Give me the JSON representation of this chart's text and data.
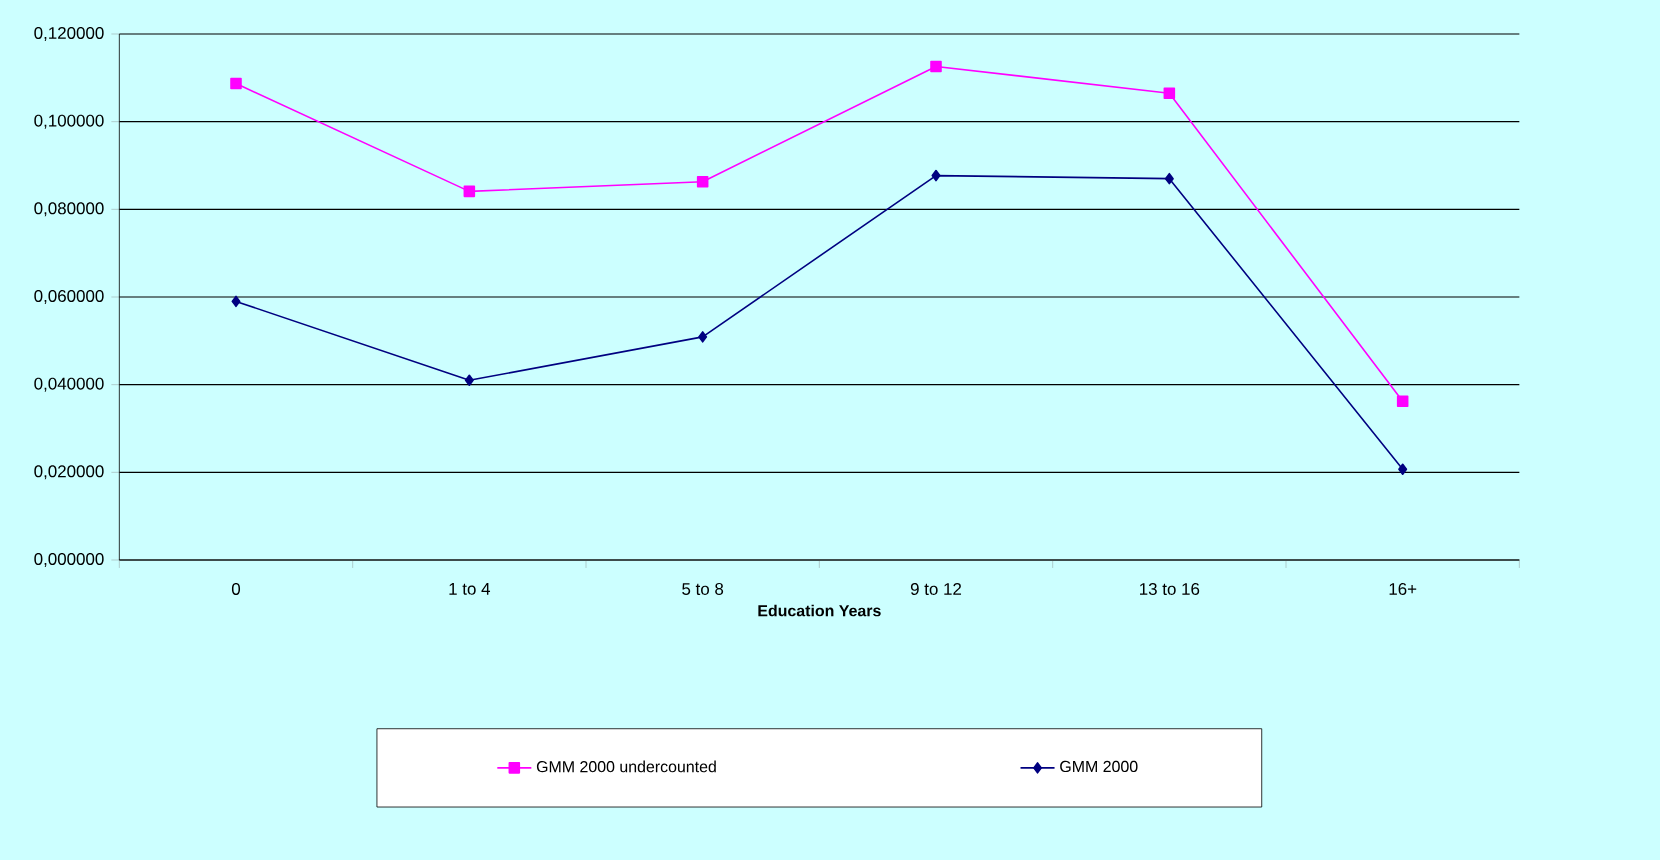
{
  "chart_data": {
    "type": "line",
    "xlabel": "Education Years",
    "categories": [
      "0",
      "1 to 4",
      "5 to 8",
      "9 to 12",
      "13 to 16",
      "16+"
    ],
    "series": [
      {
        "name": "GMM 2000 undercounted",
        "color": "#ff00ff",
        "marker": "square",
        "values": [
          0.1087,
          0.0841,
          0.0863,
          0.1126,
          0.1065,
          0.0362
        ]
      },
      {
        "name": "GMM 2000",
        "color": "#000080",
        "marker": "diamond",
        "values": [
          0.059,
          0.041,
          0.0509,
          0.0877,
          0.087,
          0.0207
        ]
      }
    ],
    "ylim": [
      0,
      0.12
    ],
    "yticks": [
      {
        "value": 0,
        "label": "0,000000"
      },
      {
        "value": 0.02,
        "label": "0,020000"
      },
      {
        "value": 0.04,
        "label": "0,040000"
      },
      {
        "value": 0.06,
        "label": "0,060000"
      },
      {
        "value": 0.08,
        "label": "0,080000"
      },
      {
        "value": 0.1,
        "label": "0,100000"
      },
      {
        "value": 0.12,
        "label": "0,120000"
      }
    ],
    "grid": "y",
    "legend": "bottom",
    "line_style": "solid"
  }
}
